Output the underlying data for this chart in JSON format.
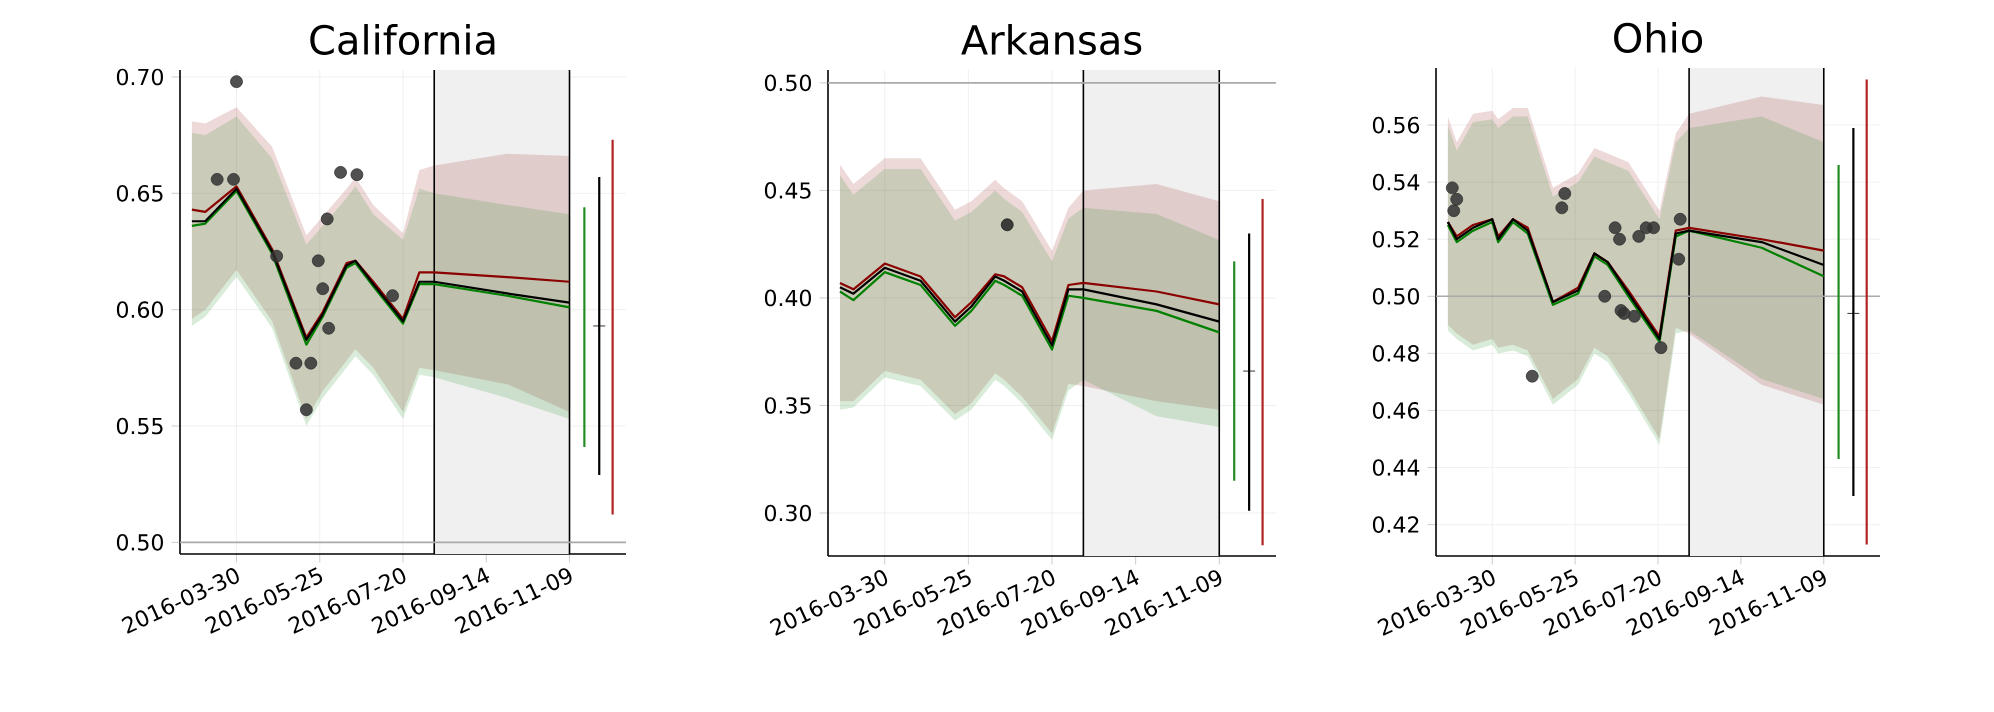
{
  "chart_data": [
    {
      "type": "line",
      "title": "California",
      "grid": true,
      "xlim": [
        "2016-02-21",
        "2016-12-17"
      ],
      "ylim": [
        0.495,
        0.703
      ],
      "xticks": [
        "2016-03-30",
        "2016-05-25",
        "2016-07-20",
        "2016-09-14",
        "2016-11-09"
      ],
      "yticks": [
        {
          "value": 0.5,
          "label": "0.50"
        },
        {
          "value": 0.55,
          "label": "0.55"
        },
        {
          "value": 0.6,
          "label": "0.60"
        },
        {
          "value": 0.65,
          "label": "0.65"
        },
        {
          "value": 0.7,
          "label": "0.70"
        }
      ],
      "x": [
        "2016-02-29",
        "2016-03-09",
        "2016-03-30",
        "2016-04-23",
        "2016-05-16",
        "2016-05-27",
        "2016-06-12",
        "2016-06-18",
        "2016-06-30",
        "2016-07-20",
        "2016-07-31",
        "2016-08-10",
        "2016-09-28",
        "2016-11-09"
      ],
      "bands": [
        {
          "axis": "x",
          "from": "2016-08-10",
          "to": "2016-11-09",
          "color": "#f0f0f0"
        }
      ],
      "ref_lines": [
        {
          "axis": "x",
          "value": "2016-08-10",
          "color": "#000000"
        },
        {
          "axis": "x",
          "value": "2016-11-09",
          "color": "#000000"
        },
        {
          "axis": "y",
          "value": 0.5,
          "color": "#aaaaaa"
        }
      ],
      "series": [
        {
          "color": "#8b0000",
          "values": [
            0.643,
            0.642,
            0.653,
            0.626,
            0.588,
            0.599,
            0.62,
            0.621,
            0.612,
            0.596,
            0.616,
            0.616,
            0.614,
            0.612
          ],
          "upper": [
            0.681,
            0.68,
            0.687,
            0.67,
            0.632,
            0.64,
            0.652,
            0.657,
            0.645,
            0.633,
            0.66,
            0.662,
            0.667,
            0.666
          ],
          "lower": [
            0.596,
            0.6,
            0.617,
            0.595,
            0.553,
            0.565,
            0.578,
            0.583,
            0.575,
            0.556,
            0.575,
            0.574,
            0.568,
            0.556
          ]
        },
        {
          "color": "#008000",
          "values": [
            0.636,
            0.637,
            0.651,
            0.624,
            0.585,
            0.597,
            0.618,
            0.62,
            0.61,
            0.594,
            0.611,
            0.611,
            0.606,
            0.601
          ],
          "upper": [
            0.676,
            0.675,
            0.683,
            0.665,
            0.628,
            0.636,
            0.648,
            0.653,
            0.641,
            0.63,
            0.652,
            0.65,
            0.645,
            0.641
          ],
          "lower": [
            0.593,
            0.597,
            0.614,
            0.592,
            0.55,
            0.562,
            0.575,
            0.58,
            0.572,
            0.553,
            0.572,
            0.571,
            0.562,
            0.553
          ]
        },
        {
          "color": "#000000",
          "values": [
            0.638,
            0.638,
            0.652,
            0.625,
            0.587,
            0.598,
            0.619,
            0.621,
            0.611,
            0.595,
            0.612,
            0.612,
            0.607,
            0.603
          ]
        },
        {
          "type": "scatter",
          "marker": "circle",
          "color": "#333333",
          "x": [
            "2016-03-17",
            "2016-03-28",
            "2016-03-30",
            "2016-04-26",
            "2016-05-09",
            "2016-05-16",
            "2016-05-19",
            "2016-05-24",
            "2016-05-27",
            "2016-05-30",
            "2016-05-31",
            "2016-06-08",
            "2016-06-19",
            "2016-07-13"
          ],
          "values": [
            0.656,
            0.656,
            0.698,
            0.623,
            0.577,
            0.557,
            0.577,
            0.621,
            0.609,
            0.639,
            0.592,
            0.659,
            0.658,
            0.606
          ]
        },
        {
          "color": "#228b22",
          "x": [
            "2016-11-19",
            "2016-11-19"
          ],
          "values": [
            0.541,
            0.644
          ]
        },
        {
          "color": "#000000",
          "x": [
            "2016-11-29",
            "2016-11-29"
          ],
          "values": [
            0.529,
            0.657
          ]
        },
        {
          "type": "scatter",
          "marker": "cross",
          "color": "#000000",
          "x": [
            "2016-11-29"
          ],
          "values": [
            0.593
          ]
        },
        {
          "color": "#b22222",
          "x": [
            "2016-12-08",
            "2016-12-08"
          ],
          "values": [
            0.512,
            0.673
          ]
        }
      ]
    },
    {
      "type": "line",
      "title": "Arkansas",
      "grid": true,
      "xlim": [
        "2016-02-21",
        "2016-12-17"
      ],
      "ylim": [
        0.28,
        0.506
      ],
      "xticks": [
        "2016-03-30",
        "2016-05-25",
        "2016-07-20",
        "2016-09-14",
        "2016-11-09"
      ],
      "yticks": [
        {
          "value": 0.3,
          "label": "0.30"
        },
        {
          "value": 0.35,
          "label": "0.35"
        },
        {
          "value": 0.4,
          "label": "0.40"
        },
        {
          "value": 0.45,
          "label": "0.45"
        },
        {
          "value": 0.5,
          "label": "0.50"
        }
      ],
      "x": [
        "2016-02-29",
        "2016-03-09",
        "2016-03-30",
        "2016-04-23",
        "2016-05-16",
        "2016-05-27",
        "2016-06-12",
        "2016-06-18",
        "2016-06-30",
        "2016-07-20",
        "2016-07-31",
        "2016-08-10",
        "2016-09-28",
        "2016-11-09"
      ],
      "bands": [
        {
          "axis": "x",
          "from": "2016-08-10",
          "to": "2016-11-09",
          "color": "#f0f0f0"
        }
      ],
      "ref_lines": [
        {
          "axis": "x",
          "value": "2016-08-10",
          "color": "#000000"
        },
        {
          "axis": "x",
          "value": "2016-11-09",
          "color": "#000000"
        },
        {
          "axis": "y",
          "value": 0.5,
          "color": "#aaaaaa"
        }
      ],
      "series": [
        {
          "color": "#8b0000",
          "values": [
            0.407,
            0.404,
            0.416,
            0.41,
            0.391,
            0.398,
            0.411,
            0.41,
            0.405,
            0.38,
            0.406,
            0.407,
            0.403,
            0.397
          ],
          "upper": [
            0.462,
            0.453,
            0.465,
            0.465,
            0.441,
            0.445,
            0.455,
            0.451,
            0.445,
            0.422,
            0.442,
            0.45,
            0.453,
            0.445
          ],
          "lower": [
            0.352,
            0.352,
            0.366,
            0.362,
            0.346,
            0.351,
            0.365,
            0.362,
            0.354,
            0.337,
            0.36,
            0.359,
            0.352,
            0.348
          ]
        },
        {
          "color": "#008000",
          "values": [
            0.403,
            0.399,
            0.412,
            0.406,
            0.387,
            0.394,
            0.408,
            0.406,
            0.401,
            0.376,
            0.401,
            0.4,
            0.394,
            0.384
          ],
          "upper": [
            0.457,
            0.448,
            0.46,
            0.46,
            0.436,
            0.44,
            0.45,
            0.446,
            0.44,
            0.417,
            0.437,
            0.442,
            0.439,
            0.427
          ],
          "lower": [
            0.348,
            0.349,
            0.363,
            0.359,
            0.343,
            0.348,
            0.362,
            0.359,
            0.351,
            0.334,
            0.357,
            0.362,
            0.345,
            0.34
          ]
        },
        {
          "color": "#000000",
          "values": [
            0.405,
            0.402,
            0.414,
            0.408,
            0.389,
            0.396,
            0.41,
            0.408,
            0.403,
            0.378,
            0.404,
            0.404,
            0.397,
            0.389
          ]
        },
        {
          "type": "scatter",
          "marker": "circle",
          "color": "#222222",
          "x": [
            "2016-06-20"
          ],
          "values": [
            0.434
          ]
        },
        {
          "color": "#228b22",
          "x": [
            "2016-11-19",
            "2016-11-19"
          ],
          "values": [
            0.315,
            0.417
          ]
        },
        {
          "color": "#000000",
          "x": [
            "2016-11-29",
            "2016-11-29"
          ],
          "values": [
            0.301,
            0.43
          ]
        },
        {
          "type": "scatter",
          "marker": "cross",
          "color": "#000000",
          "x": [
            "2016-11-29"
          ],
          "values": [
            0.366
          ]
        },
        {
          "color": "#b22222",
          "x": [
            "2016-12-08",
            "2016-12-08"
          ],
          "values": [
            0.285,
            0.446
          ]
        }
      ]
    },
    {
      "type": "line",
      "title": "Ohio",
      "grid": true,
      "xlim": [
        "2016-02-21",
        "2016-12-17"
      ],
      "ylim": [
        0.409,
        0.58
      ],
      "xticks": [
        "2016-03-30",
        "2016-05-25",
        "2016-07-20",
        "2016-09-14",
        "2016-11-09"
      ],
      "yticks": [
        0.42,
        0.44,
        0.46,
        0.48,
        {
          "value": 0.5,
          "label": "0.50"
        },
        0.52,
        0.54,
        0.56
      ],
      "x": [
        "2016-02-29",
        "2016-03-06",
        "2016-03-17",
        "2016-03-30",
        "2016-04-03",
        "2016-04-13",
        "2016-04-23",
        "2016-05-10",
        "2016-05-27",
        "2016-06-07",
        "2016-06-16",
        "2016-06-30",
        "2016-07-21",
        "2016-08-01",
        "2016-08-10",
        "2016-09-28",
        "2016-11-09"
      ],
      "bands": [
        {
          "axis": "x",
          "from": "2016-08-10",
          "to": "2016-11-09",
          "color": "#f0f0f0"
        }
      ],
      "ref_lines": [
        {
          "axis": "x",
          "value": "2016-08-10",
          "color": "#000000"
        },
        {
          "axis": "x",
          "value": "2016-11-09",
          "color": "#000000"
        },
        {
          "axis": "y",
          "value": 0.5,
          "color": "#aaaaaa"
        }
      ],
      "series": [
        {
          "color": "#8b0000",
          "values": [
            0.526,
            0.521,
            0.525,
            0.527,
            0.521,
            0.527,
            0.524,
            0.498,
            0.503,
            0.515,
            0.512,
            0.502,
            0.486,
            0.523,
            0.524,
            0.52,
            0.516
          ],
          "upper": [
            0.563,
            0.554,
            0.564,
            0.565,
            0.562,
            0.566,
            0.566,
            0.538,
            0.543,
            0.552,
            0.55,
            0.547,
            0.53,
            0.557,
            0.564,
            0.57,
            0.567
          ],
          "lower": [
            0.49,
            0.487,
            0.483,
            0.485,
            0.482,
            0.483,
            0.481,
            0.464,
            0.471,
            0.482,
            0.479,
            0.468,
            0.45,
            0.489,
            0.487,
            0.469,
            0.462
          ]
        },
        {
          "color": "#008000",
          "values": [
            0.525,
            0.519,
            0.523,
            0.526,
            0.519,
            0.526,
            0.522,
            0.497,
            0.501,
            0.514,
            0.511,
            0.5,
            0.484,
            0.521,
            0.523,
            0.517,
            0.507
          ],
          "upper": [
            0.56,
            0.551,
            0.561,
            0.562,
            0.559,
            0.563,
            0.563,
            0.535,
            0.54,
            0.549,
            0.547,
            0.544,
            0.527,
            0.554,
            0.559,
            0.563,
            0.554
          ],
          "lower": [
            0.488,
            0.485,
            0.481,
            0.483,
            0.48,
            0.481,
            0.479,
            0.462,
            0.469,
            0.48,
            0.477,
            0.466,
            0.448,
            0.487,
            0.488,
            0.471,
            0.464
          ]
        },
        {
          "color": "#000000",
          "values": [
            0.526,
            0.52,
            0.524,
            0.527,
            0.52,
            0.527,
            0.523,
            0.498,
            0.502,
            0.515,
            0.512,
            0.501,
            0.485,
            0.522,
            0.523,
            0.519,
            0.511
          ]
        },
        {
          "type": "scatter",
          "marker": "circle",
          "color": "#333333",
          "x": [
            "2016-03-03",
            "2016-03-04",
            "2016-03-06",
            "2016-04-26",
            "2016-05-16",
            "2016-05-18",
            "2016-06-14",
            "2016-06-21",
            "2016-06-24",
            "2016-06-25",
            "2016-06-27",
            "2016-07-04",
            "2016-07-07",
            "2016-07-12",
            "2016-07-17",
            "2016-07-22",
            "2016-08-03",
            "2016-08-04"
          ],
          "values": [
            0.538,
            0.53,
            0.534,
            0.472,
            0.531,
            0.536,
            0.5,
            0.524,
            0.52,
            0.495,
            0.494,
            0.493,
            0.521,
            0.524,
            0.524,
            0.482,
            0.513,
            0.527
          ]
        },
        {
          "color": "#228b22",
          "x": [
            "2016-11-19",
            "2016-11-19"
          ],
          "values": [
            0.443,
            0.546
          ]
        },
        {
          "color": "#000000",
          "x": [
            "2016-11-29",
            "2016-11-29"
          ],
          "values": [
            0.43,
            0.559
          ]
        },
        {
          "type": "scatter",
          "marker": "cross",
          "color": "#000000",
          "x": [
            "2016-11-29"
          ],
          "values": [
            0.494
          ]
        },
        {
          "color": "#b22222",
          "x": [
            "2016-12-08",
            "2016-12-08"
          ],
          "values": [
            0.413,
            0.576
          ]
        }
      ]
    }
  ]
}
